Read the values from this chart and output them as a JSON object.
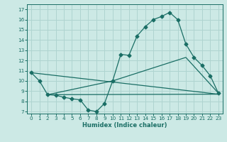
{
  "xlabel": "Humidex (Indice chaleur)",
  "bg_color": "#cce9e5",
  "grid_color": "#afd4d0",
  "line_color": "#1a6e65",
  "xlim": [
    -0.5,
    23.5
  ],
  "ylim": [
    6.8,
    17.5
  ],
  "yticks": [
    7,
    8,
    9,
    10,
    11,
    12,
    13,
    14,
    15,
    16,
    17
  ],
  "xticks": [
    0,
    1,
    2,
    3,
    4,
    5,
    6,
    7,
    8,
    9,
    10,
    11,
    12,
    13,
    14,
    15,
    16,
    17,
    18,
    19,
    20,
    21,
    22,
    23
  ],
  "curve1_x": [
    0,
    1,
    2,
    3,
    4,
    5,
    6,
    7,
    8,
    9,
    10,
    11,
    12,
    13,
    14,
    15,
    16,
    17,
    18,
    19,
    20,
    21,
    22,
    23
  ],
  "curve1_y": [
    10.8,
    10.0,
    8.65,
    8.6,
    8.4,
    8.25,
    8.15,
    7.15,
    7.0,
    7.8,
    10.0,
    12.6,
    12.5,
    14.4,
    15.3,
    16.0,
    16.3,
    16.7,
    16.0,
    13.6,
    12.3,
    11.5,
    10.5,
    8.8
  ],
  "curve2_x": [
    0,
    23
  ],
  "curve2_y": [
    10.8,
    8.7
  ],
  "curve3_x": [
    2,
    23
  ],
  "curve3_y": [
    8.65,
    8.7
  ],
  "curve4_x": [
    2,
    10,
    19,
    23
  ],
  "curve4_y": [
    8.65,
    10.0,
    12.3,
    8.8
  ]
}
